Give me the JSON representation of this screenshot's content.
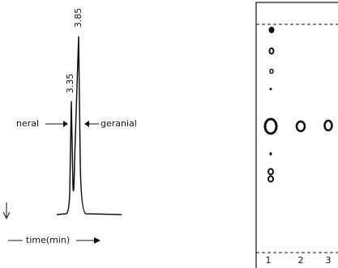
{
  "chromatogram": {
    "peak_labels": [
      "3.85",
      "3.35"
    ],
    "left_label": "neral",
    "right_label": "geranial",
    "x_axis_label": "time(min)"
  },
  "tlc_plate": {
    "lanes": [
      "1",
      "2",
      "3"
    ]
  }
}
